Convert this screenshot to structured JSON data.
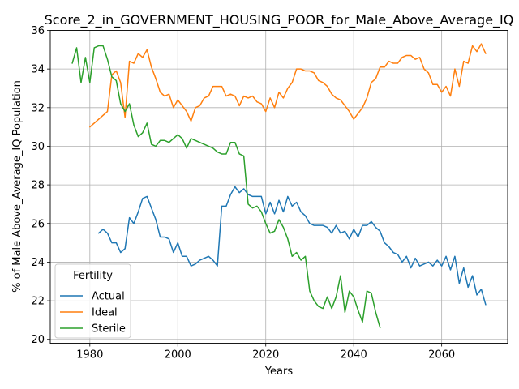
{
  "chart_data": {
    "type": "line",
    "title": "Score_2_in_GOVERNMENT_HOUSING_POOR_for_Male_Above_Average_IQ",
    "xlabel": "Years",
    "ylabel": "% of Male Above_Average_IQ Population",
    "xlim": [
      1971,
      2075
    ],
    "ylim": [
      19.8,
      36
    ],
    "xticks": [
      1980,
      2000,
      2020,
      2040,
      2060
    ],
    "yticks": [
      20,
      22,
      24,
      26,
      28,
      30,
      32,
      34,
      36
    ],
    "grid": true,
    "legend": {
      "title": "Fertility",
      "placement": "lower-left"
    },
    "series": [
      {
        "name": "Actual",
        "color": "#1f77b4",
        "x": [
          1982,
          1983,
          1984,
          1985,
          1986,
          1987,
          1988,
          1989,
          1990,
          1991,
          1992,
          1993,
          1994,
          1995,
          1996,
          1997,
          1998,
          1999,
          2000,
          2001,
          2002,
          2003,
          2004,
          2005,
          2006,
          2007,
          2008,
          2009,
          2010,
          2011,
          2012,
          2013,
          2014,
          2015,
          2016,
          2017,
          2018,
          2019,
          2020,
          2021,
          2022,
          2023,
          2024,
          2025,
          2026,
          2027,
          2028,
          2029,
          2030,
          2031,
          2032,
          2033,
          2034,
          2035,
          2036,
          2037,
          2038,
          2039,
          2040,
          2041,
          2042,
          2043,
          2044,
          2045,
          2046,
          2047,
          2048,
          2049,
          2050,
          2051,
          2052,
          2053,
          2054,
          2055,
          2056,
          2057,
          2058,
          2059,
          2060,
          2061,
          2062,
          2063,
          2064,
          2065,
          2066,
          2067,
          2068,
          2069,
          2070
        ],
        "y": [
          25.5,
          25.7,
          25.5,
          25.0,
          25.0,
          24.5,
          24.7,
          26.3,
          26.0,
          26.6,
          27.3,
          27.4,
          26.8,
          26.2,
          25.3,
          25.3,
          25.2,
          24.5,
          25.0,
          24.3,
          24.3,
          23.8,
          23.9,
          24.1,
          24.2,
          24.3,
          24.1,
          23.8,
          26.9,
          26.9,
          27.5,
          27.9,
          27.6,
          27.8,
          27.5,
          27.4,
          27.4,
          27.4,
          26.5,
          27.1,
          26.5,
          27.2,
          26.6,
          27.4,
          26.9,
          27.1,
          26.6,
          26.4,
          26.0,
          25.9,
          25.9,
          25.9,
          25.8,
          25.5,
          25.9,
          25.5,
          25.6,
          25.2,
          25.7,
          25.3,
          25.9,
          25.9,
          26.1,
          25.8,
          25.6,
          25.0,
          24.8,
          24.5,
          24.4,
          24.0,
          24.3,
          23.7,
          24.2,
          23.8,
          23.9,
          24.0,
          23.8,
          24.1,
          23.8,
          24.3,
          23.6,
          24.3,
          22.9,
          23.7,
          22.7,
          23.3,
          22.3,
          22.6,
          21.8
        ]
      },
      {
        "name": "Ideal",
        "color": "#ff7f0e",
        "x": [
          1980,
          1984,
          1985,
          1986,
          1987,
          1988,
          1989,
          1990,
          1991,
          1992,
          1993,
          1994,
          1995,
          1996,
          1997,
          1998,
          1999,
          2000,
          2001,
          2002,
          2003,
          2004,
          2005,
          2006,
          2007,
          2008,
          2009,
          2010,
          2011,
          2012,
          2013,
          2014,
          2015,
          2016,
          2017,
          2018,
          2019,
          2020,
          2021,
          2022,
          2023,
          2024,
          2025,
          2026,
          2027,
          2028,
          2029,
          2030,
          2031,
          2032,
          2033,
          2034,
          2035,
          2036,
          2037,
          2038,
          2039,
          2040,
          2041,
          2042,
          2043,
          2044,
          2045,
          2046,
          2047,
          2048,
          2049,
          2050,
          2051,
          2052,
          2053,
          2054,
          2055,
          2056,
          2057,
          2058,
          2059,
          2060,
          2061,
          2062,
          2063,
          2064,
          2065,
          2066,
          2067,
          2068,
          2069,
          2070
        ],
        "y": [
          31.0,
          31.8,
          33.7,
          33.9,
          33.3,
          31.5,
          34.4,
          34.3,
          34.8,
          34.6,
          35.0,
          34.1,
          33.5,
          32.8,
          32.6,
          32.7,
          32.0,
          32.4,
          32.1,
          31.8,
          31.3,
          32.0,
          32.1,
          32.5,
          32.6,
          33.1,
          33.1,
          33.1,
          32.6,
          32.7,
          32.6,
          32.1,
          32.6,
          32.5,
          32.6,
          32.3,
          32.2,
          31.8,
          32.5,
          32.0,
          32.8,
          32.5,
          33.0,
          33.3,
          34.0,
          34.0,
          33.9,
          33.9,
          33.8,
          33.4,
          33.3,
          33.1,
          32.7,
          32.5,
          32.4,
          32.1,
          31.8,
          31.4,
          31.7,
          32.0,
          32.5,
          33.3,
          33.5,
          34.1,
          34.1,
          34.4,
          34.3,
          34.3,
          34.6,
          34.7,
          34.7,
          34.5,
          34.6,
          34.0,
          33.8,
          33.2,
          33.2,
          32.8,
          33.1,
          32.6,
          34.0,
          33.1,
          34.4,
          34.3,
          35.2,
          34.9,
          35.3,
          34.8
        ]
      },
      {
        "name": "Sterile",
        "color": "#2ca02c",
        "x": [
          1976,
          1977,
          1978,
          1979,
          1980,
          1981,
          1982,
          1983,
          1984,
          1985,
          1986,
          1987,
          1988,
          1989,
          1990,
          1991,
          1992,
          1993,
          1994,
          1995,
          1996,
          1997,
          1998,
          1999,
          2000,
          2001,
          2002,
          2003,
          2004,
          2005,
          2006,
          2007,
          2008,
          2009,
          2010,
          2011,
          2012,
          2013,
          2014,
          2015,
          2016,
          2017,
          2018,
          2019,
          2020,
          2021,
          2022,
          2023,
          2024,
          2025,
          2026,
          2027,
          2028,
          2029,
          2030,
          2031,
          2032,
          2033,
          2034,
          2035,
          2036,
          2037,
          2038,
          2039,
          2040,
          2041,
          2042,
          2043,
          2044,
          2045,
          2046
        ],
        "y": [
          34.3,
          35.1,
          33.3,
          34.6,
          33.3,
          35.1,
          35.2,
          35.2,
          34.5,
          33.6,
          33.4,
          32.2,
          31.8,
          32.2,
          31.1,
          30.5,
          30.7,
          31.2,
          30.1,
          30.0,
          30.3,
          30.3,
          30.2,
          30.4,
          30.6,
          30.4,
          29.9,
          30.4,
          30.3,
          30.2,
          30.1,
          30.0,
          29.9,
          29.7,
          29.6,
          29.6,
          30.2,
          30.2,
          29.6,
          29.5,
          27.0,
          26.8,
          26.9,
          26.6,
          26.0,
          25.5,
          25.6,
          26.2,
          25.8,
          25.2,
          24.3,
          24.5,
          24.1,
          24.3,
          22.5,
          22.0,
          21.7,
          21.6,
          22.2,
          21.6,
          22.2,
          23.3,
          21.4,
          22.5,
          22.2,
          21.5,
          20.9,
          22.5,
          22.4,
          21.4,
          20.6
        ]
      }
    ]
  }
}
